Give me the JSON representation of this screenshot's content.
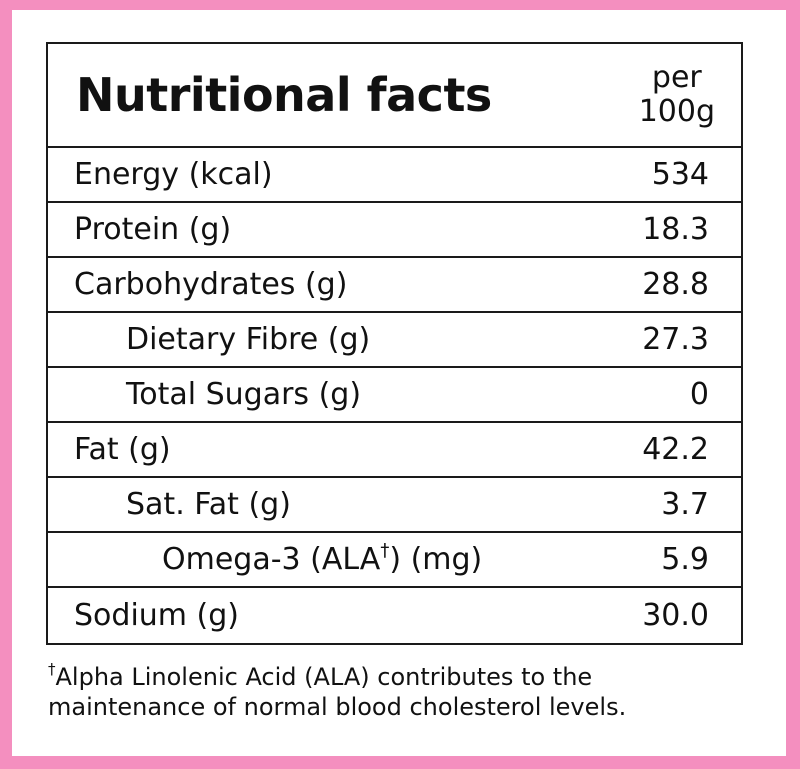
{
  "header": {
    "title": "Nutritional facts",
    "per_line1": "per",
    "per_line2": "100g"
  },
  "rows": [
    {
      "label": "Energy (kcal)",
      "value": "534"
    },
    {
      "label": "Protein (g)",
      "value": "18.3"
    },
    {
      "label": "Carbohydrates (g)",
      "value": "28.8"
    },
    {
      "label": "Dietary Fibre (g)",
      "value": "27.3"
    },
    {
      "label": "Total Sugars (g)",
      "value": "0"
    },
    {
      "label": "Fat (g)",
      "value": "42.2"
    },
    {
      "label": "Sat. Fat (g)",
      "value": "3.7"
    },
    {
      "label_pre": "Omega-3 (ALA",
      "label_sup": "†",
      "label_post": ") (mg)",
      "value": "5.9"
    },
    {
      "label": "Sodium (g)",
      "value": "30.0"
    }
  ],
  "footnote": {
    "mark": "†",
    "line1": "Alpha Linolenic Acid (ALA) contributes to the",
    "line2": "maintenance of normal blood cholesterol levels."
  },
  "colors": {
    "border_frame": "#f48fbf",
    "background": "#ffffff",
    "text": "#111111"
  }
}
